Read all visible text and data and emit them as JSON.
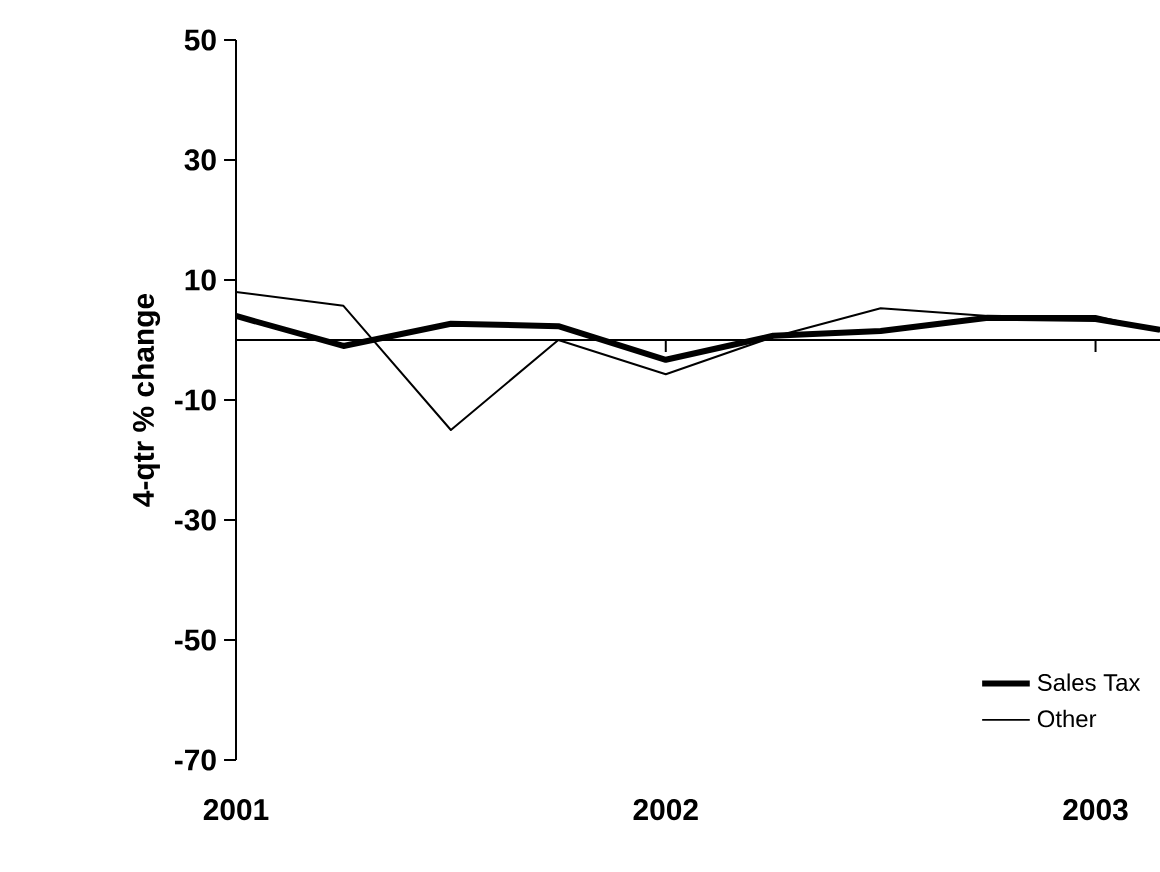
{
  "chart_data": {
    "type": "line",
    "ylabel": "4-qtr % change",
    "x": [
      2001,
      2001.25,
      2001.5,
      2001.75,
      2002,
      2002.25,
      2002.5,
      2002.75,
      2003,
      2003.15
    ],
    "series": [
      {
        "name": "Sales Tax",
        "color": "#000000",
        "values": [
          4,
          -1,
          2.7,
          2.3,
          -3.3,
          0.7,
          1.5,
          3.7,
          3.5,
          1.7
        ]
      },
      {
        "name": "Other",
        "color": "#000000",
        "values": [
          8,
          5.7,
          -15,
          0,
          -5.7,
          0.5,
          5.3,
          4,
          4,
          1.5
        ]
      }
    ],
    "xlim": [
      2001,
      2003.15
    ],
    "xticks": [
      2001,
      2002,
      2003
    ],
    "ylim": [
      -70,
      50
    ],
    "yticks": [
      -70,
      -50,
      -30,
      -10,
      10,
      30,
      50
    ],
    "legend": "bottom right",
    "grid": false,
    "marker": "none",
    "line_style": "solid"
  }
}
